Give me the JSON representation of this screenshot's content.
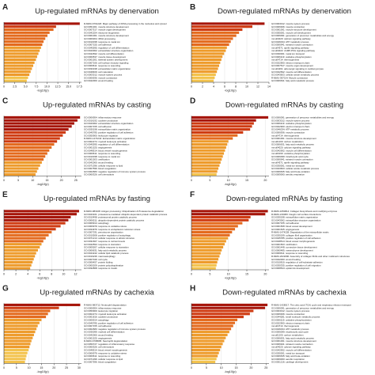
{
  "colors": {
    "palette_light_to_dark": [
      "#f6e08a",
      "#f3c24b",
      "#ee9b2b",
      "#e46a1d",
      "#cf3b12",
      "#a6150a"
    ],
    "text": "#222222",
    "axis": "#333333"
  },
  "chart_data": [
    {
      "panel": "A",
      "title": "Up-regulated mRNAs by denervation",
      "type": "bar",
      "orientation": "horizontal",
      "xlabel": "-log10(p)",
      "xticks": [
        "0",
        "2.5",
        "5.0",
        "7.5",
        "10.0",
        "12.5",
        "15.0",
        "17.5"
      ],
      "xlim": [
        0,
        18
      ],
      "categories": [
        "R-MMU-6791226: Major pathway of rRNA processing in the nucleolus and cytosol",
        "GO:0051301: muscle structure development",
        "GO:0007517: muscle organ development",
        "GO:0042254: ribosome biogenesis",
        "GO:0061061: muscle structure development",
        "GO:0006364: rRNA processing",
        "GO:0010038: response to metal ion",
        "GO:0007155: cell adhesion",
        "GO:0045595: regulation of cell differentiation",
        "GO:0043062: extracellular structure organization",
        "GO:0042692: muscle cell differentiation",
        "GO:0060537: muscle tissue development",
        "GO:0001501: skeletal system development",
        "GO:0007166: cell surface receptor signaling",
        "GO:0009611: response to wounding",
        "GO:0030198: extracellular matrix organization",
        "GO:0048469: cell maturation",
        "GO:0003012: muscle system process",
        "GO:0006936: muscle contraction",
        "GO:0042060: wound healing"
      ],
      "values": [
        17.6,
        12.1,
        11.5,
        10.6,
        10.1,
        9.6,
        9.2,
        8.9,
        8.6,
        8.3,
        8.0,
        7.7,
        7.4,
        7.1,
        6.8,
        6.5,
        6.2,
        5.9,
        5.6,
        5.3
      ]
    },
    {
      "panel": "B",
      "title": "Down-regulated mRNAs by denervation",
      "type": "bar",
      "orientation": "horizontal",
      "xlabel": "-log10(p)",
      "xticks": [
        "0",
        "2",
        "4",
        "6",
        "8",
        "10",
        "12",
        "14"
      ],
      "xlim": [
        0,
        14
      ],
      "categories": [
        "GO:0003012: muscle system process",
        "GO:0006936: muscle contraction",
        "GO:0061061: muscle structure development",
        "GO:0055001: muscle cell development",
        "GO:0006091: generation of precursor metabolites and energy",
        "mmu04020: calcium signaling pathway",
        "GO:0046034: ATP metabolic process",
        "GO:0006941: striated muscle contraction",
        "mmu04371: apelin signaling pathway",
        "mmu04022: cGMP-PKG signaling pathway",
        "GO:0030001: metal ion transport",
        "GO:0006119: oxidative phosphorylation",
        "mmu04714: thermogenesis",
        "GO:0022900: electron transport chain",
        "GO:0007517: muscle organ development",
        "mmu04261: adrenergic signaling in cardiomyocytes",
        "GO:0042692: muscle cell differentiation",
        "GO:0043603: cellular amide metabolic process",
        "R-MMU-397014: Muscle contraction",
        "GO:0006631: fatty acid metabolic process"
      ],
      "values": [
        13.2,
        11.0,
        9.2,
        8.6,
        8.1,
        7.5,
        7.1,
        6.8,
        6.4,
        6.2,
        5.9,
        5.6,
        5.4,
        5.2,
        5.0,
        4.8,
        4.6,
        4.4,
        4.2,
        4.0
      ]
    },
    {
      "panel": "C",
      "title": "Up-regulated mRNAs by casting",
      "type": "bar",
      "orientation": "horizontal",
      "xlabel": "-log10(p)",
      "xticks": [
        "0",
        "5",
        "10",
        "15",
        "20",
        "25"
      ],
      "xlim": [
        0,
        27
      ],
      "categories": [
        "GO:0006954: inflammatory response",
        "GO:0016192: cytokine production",
        "GO:0043062: extracellular structure organization",
        "GO:0007155: cell adhesion",
        "GO:0030198: extracellular matrix organization",
        "GO:0045785: positive regulation of cell adhesion",
        "GO:0050900: leukocyte migration",
        "R-MMU-1474244: Extracellular matrix organization",
        "GO:0002274: myeloid leukocyte activation",
        "GO:0045595: regulation of cell differentiation",
        "GO:0001525: angiogenesis",
        "GO:0048514: blood vessel morphogenesis",
        "GO:0009611: response to wounding",
        "GO:0010038: response to metal ion",
        "GO:0001503: ossification",
        "GO:0042060: wound healing",
        "GO:0071396: cellular response to lipid",
        "GO:0007596: blood coagulation",
        "GO:0002683: negative regulation of immune system process",
        "GO:0060326: cell chemotaxis"
      ],
      "values": [
        26.5,
        25.6,
        24.5,
        23.6,
        22.5,
        21.5,
        20.5,
        19.5,
        18.5,
        17.5,
        16.6,
        15.8,
        15.1,
        14.4,
        13.8,
        13.2,
        12.6,
        12.0,
        11.5,
        11.0
      ]
    },
    {
      "panel": "D",
      "title": "Down-regulated mRNAs by casting",
      "type": "bar",
      "orientation": "horizontal",
      "xlabel": "-log10(p)",
      "xticks": [
        "0",
        "5",
        "10",
        "15",
        "20"
      ],
      "xlim": [
        0,
        21
      ],
      "categories": [
        "GO:0006091: generation of precursor metabolites and energy",
        "GO:0003012: muscle system process",
        "GO:0006119: oxidative phosphorylation",
        "GO:0022900: electron transport chain",
        "GO:0046034: ATP metabolic process",
        "GO:0006936: muscle contraction",
        "mmu04714: thermogenesis",
        "GO:0061061: muscle structure development",
        "mmu01200: carbon metabolism",
        "GO:0006631: fatty acid metabolic process",
        "mmu04020: calcium signaling pathway",
        "GO:0042692: muscle cell differentiation",
        "mmu00190: oxidative phosphorylation",
        "GO:0006099: tricarboxylic acid cycle",
        "GO:0006941: striated muscle contraction",
        "mmu04371: apelin signaling pathway",
        "GO:0030001: metal ion transport",
        "GO:0043603: cellular amide metabolic process",
        "GO:0006635: fatty acid beta-oxidation",
        "GO:0009060: aerobic respiration"
      ],
      "values": [
        20.8,
        17.5,
        16.9,
        16.4,
        15.9,
        14.0,
        12.5,
        11.2,
        10.0,
        9.7,
        9.4,
        9.1,
        8.8,
        8.5,
        8.2,
        7.9,
        7.6,
        7.3,
        7.0,
        6.8
      ]
    },
    {
      "panel": "E",
      "title": "Up-regulated mRNAs by fasting",
      "type": "bar",
      "orientation": "horizontal",
      "xlabel": "-log10(p)",
      "xticks": [
        "0",
        "2",
        "4",
        "6",
        "8",
        "10",
        "12"
      ],
      "xlim": [
        0,
        13
      ],
      "categories": [
        "R-MMU-983168: Antigen processing: Ubiquitination & Proteasome degradation",
        "GO:0043161: proteasome-mediated ubiquitin-dependent protein catabolic process",
        "GO:0010498: proteasomal protein catabolic process",
        "GO:0006511: ubiquitin-dependent protein catabolic process",
        "GO:0006914: autophagy",
        "GO:0006979: response to oxidative stress",
        "GO:0034976: response to endoplasmic reticulum stress",
        "GO:0007031: peroxisome organization",
        "GO:0010508: positive regulation of autophagy",
        "GO:0071214: cellular response to abiotic stimulus",
        "GO:0031667: response to nutrient levels",
        "GO:0042594: response to starvation",
        "GO:0009267: cellular response to starvation",
        "GO:0006631: fatty acid metabolic process",
        "GO:0044242: cellular lipid catabolic process",
        "GO:0016236: macroautophagy",
        "GO:0007049: cell cycle",
        "GO:0006457: protein folding",
        "GO:0000209: protein polyubiquitination",
        "GO:0032868: response to insulin"
      ],
      "values": [
        12.6,
        12.2,
        11.2,
        10.8,
        10.3,
        9.5,
        8.7,
        8.0,
        7.5,
        7.0,
        6.6,
        6.3,
        6.0,
        5.7,
        5.4,
        5.2,
        5.0,
        4.8,
        4.6,
        4.4
      ]
    },
    {
      "panel": "F",
      "title": "Down-regulated mRNAs by fasting",
      "type": "bar",
      "orientation": "horizontal",
      "xlabel": "-log10(p)",
      "xticks": [
        "0",
        "5",
        "10",
        "15",
        "20"
      ],
      "xlim": [
        0,
        21
      ],
      "categories": [
        "R-MMU-1650814: Collagen biosynthesis and modifying enzymes",
        "R-MMU-216083: Integrin cell surface interactions",
        "GO:0030198: extracellular matrix organization",
        "GO:0043062: extracellular structure organization",
        "GO:0007155: cell adhesion",
        "GO:0001568: blood vessel development",
        "GO:0001525: angiogenesis",
        "R-MMU-1474228: Degradation of the extracellular matrix",
        "GO:0030199: collagen fibril organization",
        "GO:0045785: positive regulation of cell adhesion",
        "GO:0048514: blood vessel morphogenesis",
        "GO:0001503: ossification",
        "GO:0061448: connective tissue development",
        "GO:0060485: mesenchyme development",
        "GO:0009611: response to wounding",
        "R-MMU-2022090: Assembly of collagen fibrils and other multimeric structures",
        "GO:0042060: wound healing",
        "GO:0010810: regulation of cell-substrate adhesion",
        "GO:0030335: positive regulation of cell migration",
        "GO:0008544: epidermis development"
      ],
      "values": [
        20.7,
        20.0,
        16.0,
        15.5,
        13.8,
        12.6,
        11.8,
        11.0,
        10.4,
        9.9,
        9.4,
        9.0,
        8.6,
        8.2,
        7.9,
        7.6,
        7.3,
        7.0,
        6.8,
        6.6
      ]
    },
    {
      "panel": "G",
      "title": "Up-regulated mRNAs by cachexia",
      "type": "bar",
      "orientation": "horizontal",
      "xlabel": "-log10(p)",
      "xticks": [
        "0",
        "5",
        "10",
        "15",
        "20",
        "25",
        "30"
      ],
      "xlim": [
        0,
        31
      ],
      "categories": [
        "R-MMU-983712: Neutrophil degranulation",
        "GO:0006954: inflammatory response",
        "GO:0050900: leukocyte migration",
        "GO:0002274: myeloid leukocyte activation",
        "GO:0001816: cytokine production",
        "GO:0006914: autophagy",
        "GO:0045785: positive regulation of cell adhesion",
        "GO:0007155: cell adhesion",
        "GO:0002683: negative regulation of immune system process",
        "GO:0030099: myeloid cell differentiation",
        "GO:0042060: wound healing",
        "GO:0001525: angiogenesis",
        "R-MMU-6798695: Neutrophil degranulation",
        "GO:0050727: regulation of inflammatory response",
        "GO:0060326: cell chemotaxis",
        "GO:0048514: blood vessel morphogenesis",
        "GO:0006979: response to oxidative stress",
        "GO:0009611: response to wounding",
        "GO:0071396: cellular response to lipid",
        "GO:0007596: blood coagulation"
      ],
      "values": [
        30.5,
        22.0,
        18.5,
        17.6,
        16.8,
        15.0,
        14.2,
        13.5,
        13.0,
        12.5,
        12.0,
        11.5,
        11.0,
        10.6,
        10.2,
        9.8,
        9.4,
        9.0,
        8.7,
        8.4
      ]
    },
    {
      "panel": "H",
      "title": "Down-regulated mRNAs by cachexia",
      "type": "bar",
      "orientation": "horizontal",
      "xlabel": "-log10(p)",
      "xticks": [
        "0",
        "5",
        "10",
        "15",
        "20",
        "25"
      ],
      "xlim": [
        0,
        26
      ],
      "categories": [
        "R-MMU-1428517: The citric acid (TCA) cycle and respiratory electron transport",
        "GO:0006091: generation of precursor metabolites and energy",
        "GO:0003012: muscle system process",
        "GO:0006936: muscle contraction",
        "GO:0044281: small molecule metabolic process",
        "GO:0006119: oxidative phosphorylation",
        "GO:0022900: electron transport chain",
        "mmu04714: thermogenesis",
        "GO:0046034: ATP metabolic process",
        "GO:0006099: tricarboxylic acid cycle",
        "mmu01200: carbon metabolism",
        "GO:0006631: fatty acid metabolic process",
        "GO:0061061: muscle structure development",
        "GO:0006941: striated muscle contraction",
        "mmu04020: calcium signaling pathway",
        "GO:0042692: muscle cell differentiation",
        "GO:0030001: metal ion transport",
        "GO:0006635: fatty acid beta-oxidation",
        "GO:0009060: aerobic respiration",
        "GO:0051216: cartilage development"
      ],
      "values": [
        25.5,
        24.7,
        20.8,
        19.6,
        17.5,
        15.4,
        14.6,
        14.0,
        13.3,
        12.7,
        12.1,
        11.5,
        11.0,
        10.5,
        10.0,
        9.6,
        9.2,
        8.8,
        8.4,
        8.0
      ]
    }
  ]
}
